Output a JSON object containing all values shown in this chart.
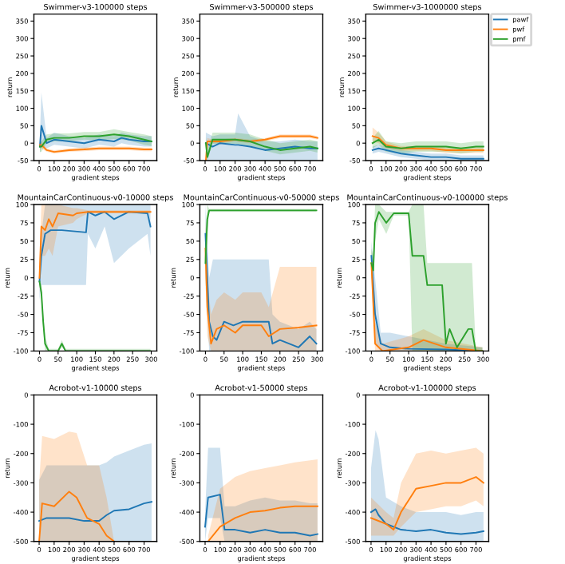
{
  "chart_data": [
    {
      "type": "line",
      "title": "Swimmer-v3-100000 steps",
      "xlabel": "gradient steps",
      "ylabel": "return",
      "xlim": [
        -35,
        785
      ],
      "ylim": [
        -50,
        370
      ],
      "xticks": [
        0,
        100,
        200,
        300,
        400,
        500,
        600,
        700
      ],
      "yticks": [
        -50,
        0,
        50,
        100,
        150,
        200,
        250,
        300,
        350
      ],
      "series": [
        {
          "color": "#1f77b4",
          "x": [
            5,
            15,
            50,
            100,
            200,
            300,
            400,
            500,
            550,
            600,
            700,
            750
          ],
          "values": [
            -10,
            50,
            0,
            10,
            5,
            0,
            10,
            5,
            15,
            10,
            5,
            5
          ],
          "lower": [
            -30,
            -10,
            -15,
            -5,
            -10,
            -15,
            -5,
            -10,
            0,
            -5,
            -10,
            -10
          ],
          "upper": [
            20,
            145,
            15,
            30,
            20,
            15,
            25,
            20,
            30,
            25,
            20,
            20
          ]
        },
        {
          "color": "#ff7f0e",
          "x": [
            5,
            15,
            50,
            100,
            200,
            300,
            400,
            500,
            600,
            700,
            750
          ],
          "values": [
            -5,
            -5,
            -20,
            -25,
            -20,
            -18,
            -15,
            -15,
            -15,
            -18,
            -18
          ],
          "lower": [
            -15,
            -15,
            -25,
            -30,
            -25,
            -23,
            -20,
            -20,
            -20,
            -23,
            -23
          ],
          "upper": [
            5,
            5,
            -15,
            -20,
            -15,
            -13,
            -10,
            -10,
            -10,
            -13,
            -13
          ]
        },
        {
          "color": "#2ca02c",
          "x": [
            5,
            15,
            50,
            100,
            200,
            300,
            400,
            500,
            600,
            700,
            750
          ],
          "values": [
            -10,
            -10,
            10,
            15,
            15,
            20,
            20,
            25,
            20,
            10,
            5
          ],
          "lower": [
            -25,
            -25,
            0,
            5,
            5,
            10,
            8,
            12,
            8,
            -5,
            -8
          ],
          "upper": [
            5,
            5,
            25,
            28,
            28,
            32,
            32,
            40,
            32,
            25,
            20
          ]
        }
      ]
    },
    {
      "type": "line",
      "title": "Swimmer-v3-500000 steps",
      "xlabel": "gradient steps",
      "ylabel": "return",
      "xlim": [
        -35,
        785
      ],
      "ylim": [
        -50,
        370
      ],
      "xticks": [
        0,
        100,
        200,
        300,
        400,
        500,
        600,
        700
      ],
      "yticks": [
        -50,
        0,
        50,
        100,
        150,
        200,
        250,
        300,
        350
      ],
      "series": [
        {
          "color": "#1f77b4",
          "x": [
            5,
            50,
            100,
            200,
            220,
            300,
            400,
            500,
            600,
            700,
            750
          ],
          "values": [
            0,
            -10,
            0,
            -5,
            -5,
            -10,
            -20,
            -15,
            -10,
            -15,
            -15
          ],
          "lower": [
            -50,
            -50,
            -50,
            -50,
            -50,
            -50,
            -50,
            -50,
            -50,
            -50,
            -50
          ],
          "upper": [
            30,
            20,
            25,
            25,
            85,
            20,
            5,
            5,
            10,
            5,
            5
          ]
        },
        {
          "color": "#ff7f0e",
          "x": [
            5,
            15,
            50,
            100,
            200,
            300,
            400,
            500,
            600,
            700,
            750
          ],
          "values": [
            -50,
            5,
            5,
            5,
            10,
            5,
            10,
            20,
            20,
            20,
            15
          ],
          "lower": [
            -50,
            -5,
            0,
            0,
            5,
            0,
            5,
            15,
            15,
            15,
            10
          ],
          "upper": [
            -40,
            15,
            10,
            10,
            15,
            10,
            15,
            25,
            25,
            25,
            20
          ]
        },
        {
          "color": "#2ca02c",
          "x": [
            5,
            15,
            50,
            100,
            200,
            300,
            400,
            500,
            600,
            700,
            750
          ],
          "values": [
            0,
            -40,
            10,
            10,
            10,
            5,
            -10,
            -20,
            -15,
            -10,
            -15
          ],
          "lower": [
            -15,
            -50,
            -2,
            -2,
            -2,
            -7,
            -22,
            -32,
            -27,
            -22,
            -27
          ],
          "upper": [
            20,
            -20,
            30,
            30,
            30,
            25,
            10,
            0,
            5,
            10,
            5
          ]
        }
      ]
    },
    {
      "type": "line",
      "title": "Swimmer-v3-1000000 steps",
      "xlabel": "gradient steps",
      "ylabel": "return",
      "xlim": [
        -35,
        785
      ],
      "ylim": [
        -50,
        370
      ],
      "xticks": [
        0,
        100,
        200,
        300,
        400,
        500,
        600,
        700
      ],
      "yticks": [
        -50,
        0,
        50,
        100,
        150,
        200,
        250,
        300,
        350
      ],
      "legend": "right",
      "series": [
        {
          "name": "pawf",
          "color": "#1f77b4",
          "x": [
            10,
            50,
            100,
            200,
            300,
            400,
            500,
            600,
            700,
            750
          ],
          "values": [
            -20,
            -15,
            -20,
            -30,
            -35,
            -40,
            -40,
            -45,
            -45,
            -45
          ],
          "lower": [
            -30,
            -25,
            -30,
            -40,
            -45,
            -50,
            -50,
            -50,
            -50,
            -50
          ],
          "upper": [
            -10,
            -5,
            -10,
            -20,
            -25,
            -30,
            -30,
            -35,
            -35,
            -35
          ]
        },
        {
          "name": "pwf",
          "color": "#ff7f0e",
          "x": [
            10,
            50,
            100,
            200,
            300,
            400,
            500,
            600,
            700,
            750
          ],
          "values": [
            20,
            15,
            -5,
            -15,
            -15,
            -15,
            -20,
            -20,
            -20,
            -20
          ],
          "lower": [
            5,
            0,
            -15,
            -22,
            -22,
            -22,
            -28,
            -28,
            -28,
            -28
          ],
          "upper": [
            45,
            30,
            5,
            -8,
            -8,
            -8,
            -12,
            -12,
            -12,
            -12
          ]
        },
        {
          "name": "pmf",
          "color": "#2ca02c",
          "x": [
            10,
            50,
            100,
            200,
            300,
            400,
            500,
            600,
            700,
            750
          ],
          "values": [
            0,
            10,
            -10,
            -15,
            -10,
            -10,
            -10,
            -15,
            -10,
            -10
          ],
          "lower": [
            -15,
            -5,
            -25,
            -30,
            -25,
            -25,
            -25,
            -30,
            -25,
            -25
          ],
          "upper": [
            15,
            35,
            5,
            0,
            5,
            5,
            5,
            0,
            5,
            5
          ]
        }
      ]
    },
    {
      "type": "line",
      "title": "MountainCarContinuous-v0-10000 steps",
      "xlabel": "gradient steps",
      "ylabel": "return",
      "xlim": [
        -15,
        315
      ],
      "ylim": [
        -100,
        100
      ],
      "xticks": [
        0,
        50,
        100,
        150,
        200,
        250,
        300
      ],
      "yticks": [
        -100,
        -75,
        -50,
        -25,
        0,
        25,
        50,
        75,
        100
      ],
      "series": [
        {
          "color": "#1f77b4",
          "x": [
            0,
            5,
            15,
            30,
            60,
            125,
            130,
            150,
            175,
            200,
            240,
            290,
            298
          ],
          "values": [
            -5,
            30,
            60,
            65,
            65,
            62,
            90,
            85,
            90,
            80,
            90,
            88,
            70
          ],
          "lower": [
            -30,
            -10,
            -10,
            -10,
            -10,
            -10,
            60,
            40,
            70,
            20,
            40,
            60,
            30
          ],
          "upper": [
            20,
            60,
            100,
            100,
            100,
            100,
            100,
            100,
            100,
            100,
            100,
            100,
            100
          ]
        },
        {
          "color": "#ff7f0e",
          "x": [
            0,
            5,
            15,
            25,
            35,
            50,
            90,
            100,
            130,
            200,
            298
          ],
          "values": [
            0,
            70,
            65,
            80,
            70,
            88,
            85,
            88,
            90,
            90,
            90
          ],
          "lower": [
            -20,
            30,
            30,
            40,
            30,
            70,
            75,
            80,
            88,
            88,
            88
          ],
          "upper": [
            20,
            100,
            100,
            100,
            100,
            100,
            95,
            95,
            92,
            92,
            92
          ]
        },
        {
          "color": "#2ca02c",
          "x": [
            0,
            5,
            10,
            15,
            25,
            50,
            60,
            70,
            298
          ],
          "values": [
            -5,
            -20,
            -60,
            -90,
            -100,
            -100,
            -90,
            -100,
            -100
          ],
          "lower": [
            -10,
            -30,
            -70,
            -100,
            -100,
            -100,
            -95,
            -100,
            -100
          ],
          "upper": [
            0,
            -10,
            -50,
            -80,
            -97,
            -97,
            -85,
            -97,
            -97
          ]
        }
      ]
    },
    {
      "type": "line",
      "title": "MountainCarContinuous-v0-50000 steps",
      "xlabel": "gradient steps",
      "ylabel": "return",
      "xlim": [
        -15,
        315
      ],
      "ylim": [
        -100,
        100
      ],
      "xticks": [
        0,
        50,
        100,
        150,
        200,
        250,
        300
      ],
      "yticks": [
        -100,
        -75,
        -50,
        -25,
        0,
        25,
        50,
        75,
        100
      ],
      "series": [
        {
          "color": "#1f77b4",
          "x": [
            0,
            5,
            10,
            20,
            30,
            50,
            75,
            100,
            170,
            180,
            200,
            250,
            280,
            298
          ],
          "values": [
            60,
            0,
            -60,
            -80,
            -85,
            -60,
            -65,
            -60,
            -60,
            -90,
            -85,
            -95,
            -80,
            -90
          ],
          "lower": [
            20,
            -50,
            -100,
            -100,
            -100,
            -100,
            -100,
            -100,
            -100,
            -100,
            -100,
            -100,
            -100,
            -100
          ],
          "upper": [
            100,
            50,
            0,
            25,
            25,
            25,
            25,
            25,
            25,
            -50,
            -60,
            -70,
            -60,
            -70
          ]
        },
        {
          "color": "#ff7f0e",
          "x": [
            0,
            5,
            15,
            30,
            50,
            80,
            100,
            150,
            170,
            200,
            250,
            298
          ],
          "values": [
            40,
            -40,
            -90,
            -70,
            -65,
            -75,
            -65,
            -65,
            -80,
            -70,
            -68,
            -65
          ],
          "lower": [
            0,
            -80,
            -100,
            -100,
            -100,
            -100,
            -100,
            -100,
            -100,
            -100,
            -100,
            -100
          ],
          "upper": [
            80,
            0,
            -50,
            -30,
            -20,
            -30,
            -20,
            -20,
            -40,
            15,
            15,
            15
          ]
        },
        {
          "color": "#2ca02c",
          "x": [
            0,
            5,
            10,
            50,
            298
          ],
          "values": [
            20,
            80,
            92,
            92,
            92
          ],
          "lower": [
            -20,
            60,
            90,
            90,
            90
          ],
          "upper": [
            60,
            100,
            94,
            94,
            94
          ]
        }
      ]
    },
    {
      "type": "line",
      "title": "MountainCarContinuous-v0-100000 steps",
      "xlabel": "gradient steps",
      "ylabel": "return",
      "xlim": [
        -15,
        315
      ],
      "ylim": [
        -100,
        100
      ],
      "xticks": [
        0,
        50,
        100,
        150,
        200,
        250,
        300
      ],
      "yticks": [
        -100,
        -75,
        -50,
        -25,
        0,
        25,
        50,
        75,
        100
      ],
      "series": [
        {
          "color": "#1f77b4",
          "x": [
            0,
            10,
            25,
            50,
            100,
            200,
            298
          ],
          "values": [
            30,
            -50,
            -90,
            -95,
            -97,
            -98,
            -100
          ],
          "lower": [
            10,
            -90,
            -100,
            -100,
            -100,
            -100,
            -100
          ],
          "upper": [
            50,
            0,
            -75,
            -75,
            -80,
            -90,
            -95
          ]
        },
        {
          "color": "#ff7f0e",
          "x": [
            0,
            10,
            30,
            100,
            140,
            200,
            298
          ],
          "values": [
            20,
            -90,
            -100,
            -95,
            -85,
            -95,
            -100
          ],
          "lower": [
            0,
            -100,
            -100,
            -100,
            -100,
            -100,
            -100
          ],
          "upper": [
            40,
            -60,
            -90,
            -80,
            -70,
            -85,
            -95
          ]
        },
        {
          "color": "#2ca02c",
          "x": [
            0,
            5,
            10,
            20,
            40,
            60,
            100,
            110,
            140,
            150,
            190,
            200,
            210,
            230,
            260,
            270,
            280,
            298
          ],
          "values": [
            20,
            10,
            75,
            90,
            75,
            88,
            88,
            30,
            30,
            -10,
            -10,
            -90,
            -70,
            -95,
            -70,
            -70,
            -100,
            -100
          ],
          "lower": [
            0,
            -10,
            50,
            80,
            60,
            85,
            85,
            -100,
            -100,
            -100,
            -100,
            -100,
            -100,
            -100,
            -100,
            -100,
            -100,
            -100
          ],
          "upper": [
            40,
            30,
            100,
            100,
            90,
            90,
            90,
            100,
            100,
            20,
            20,
            20,
            20,
            20,
            20,
            20,
            -95,
            -95
          ]
        }
      ]
    },
    {
      "type": "line",
      "title": "Acrobot-v1-10000 steps",
      "xlabel": "gradient steps",
      "ylabel": "return",
      "xlim": [
        -35,
        785
      ],
      "ylim": [
        -500,
        0
      ],
      "xticks": [
        0,
        100,
        200,
        300,
        400,
        500,
        600,
        700
      ],
      "yticks": [
        -500,
        -400,
        -300,
        -200,
        -100,
        0
      ],
      "series": [
        {
          "color": "#1f77b4",
          "x": [
            0,
            50,
            200,
            300,
            400,
            450,
            500,
            600,
            700,
            750
          ],
          "values": [
            -430,
            -420,
            -420,
            -430,
            -430,
            -410,
            -395,
            -390,
            -370,
            -365
          ],
          "lower": [
            -500,
            -500,
            -500,
            -500,
            -500,
            -500,
            -500,
            -500,
            -500,
            -500
          ],
          "upper": [
            -290,
            -240,
            -240,
            -240,
            -240,
            -230,
            -210,
            -190,
            -170,
            -165
          ]
        },
        {
          "color": "#ff7f0e",
          "x": [
            0,
            20,
            100,
            200,
            250,
            320,
            400,
            450,
            500
          ],
          "values": [
            -500,
            -370,
            -380,
            -330,
            -350,
            -420,
            -440,
            -480,
            -500
          ],
          "lower": [
            -500,
            -500,
            -500,
            -500,
            -500,
            -500,
            -500,
            -500,
            -500
          ],
          "upper": [
            -300,
            -140,
            -150,
            -125,
            -130,
            -240,
            -240,
            -350,
            -500
          ]
        }
      ]
    },
    {
      "type": "line",
      "title": "Acrobot-v1-50000 steps",
      "xlabel": "gradient steps",
      "ylabel": "return",
      "xlim": [
        -35,
        785
      ],
      "ylim": [
        -500,
        0
      ],
      "xticks": [
        0,
        100,
        200,
        300,
        400,
        500,
        600,
        700
      ],
      "yticks": [
        -500,
        -400,
        -300,
        -200,
        -100,
        0
      ],
      "series": [
        {
          "color": "#1f77b4",
          "x": [
            0,
            20,
            100,
            130,
            200,
            300,
            400,
            500,
            600,
            700,
            750
          ],
          "values": [
            -450,
            -350,
            -340,
            -460,
            -460,
            -470,
            -460,
            -470,
            -470,
            -480,
            -475
          ],
          "lower": [
            -500,
            -420,
            -420,
            -500,
            -500,
            -500,
            -500,
            -500,
            -500,
            -500,
            -500
          ],
          "upper": [
            -400,
            -180,
            -180,
            -380,
            -380,
            -360,
            -350,
            -360,
            -360,
            -370,
            -370
          ]
        },
        {
          "color": "#ff7f0e",
          "x": [
            20,
            100,
            200,
            300,
            400,
            500,
            600,
            750
          ],
          "values": [
            -500,
            -450,
            -420,
            -400,
            -395,
            -385,
            -380,
            -380
          ],
          "lower": [
            -500,
            -500,
            -500,
            -500,
            -500,
            -500,
            -500,
            -500
          ],
          "upper": [
            -480,
            -320,
            -280,
            -260,
            -250,
            -240,
            -230,
            -220
          ]
        }
      ]
    },
    {
      "type": "line",
      "title": "Acrobot-v1-100000 steps",
      "xlabel": "gradient steps",
      "ylabel": "return",
      "xlim": [
        -35,
        785
      ],
      "ylim": [
        -500,
        0
      ],
      "xticks": [
        0,
        100,
        200,
        300,
        400,
        500,
        600,
        700
      ],
      "yticks": [
        -500,
        -400,
        -300,
        -200,
        -100,
        0
      ],
      "series": [
        {
          "color": "#1f77b4",
          "x": [
            0,
            30,
            50,
            100,
            200,
            300,
            400,
            500,
            600,
            700,
            750
          ],
          "values": [
            -400,
            -390,
            -410,
            -440,
            -460,
            -465,
            -460,
            -470,
            -475,
            -470,
            -465
          ],
          "lower": [
            -500,
            -500,
            -500,
            -500,
            -500,
            -500,
            -500,
            -500,
            -500,
            -500,
            -500
          ],
          "upper": [
            -250,
            -120,
            -150,
            -350,
            -380,
            -400,
            -400,
            -400,
            -410,
            -400,
            -400
          ]
        },
        {
          "color": "#ff7f0e",
          "x": [
            0,
            100,
            150,
            200,
            300,
            400,
            500,
            600,
            700,
            750
          ],
          "values": [
            -420,
            -440,
            -460,
            -400,
            -320,
            -310,
            -300,
            -300,
            -280,
            -300
          ],
          "lower": [
            -480,
            -480,
            -480,
            -450,
            -400,
            -390,
            -380,
            -380,
            -360,
            -380
          ],
          "upper": [
            -350,
            -400,
            -420,
            -300,
            -200,
            -190,
            -200,
            -190,
            -180,
            -200
          ]
        }
      ]
    }
  ]
}
